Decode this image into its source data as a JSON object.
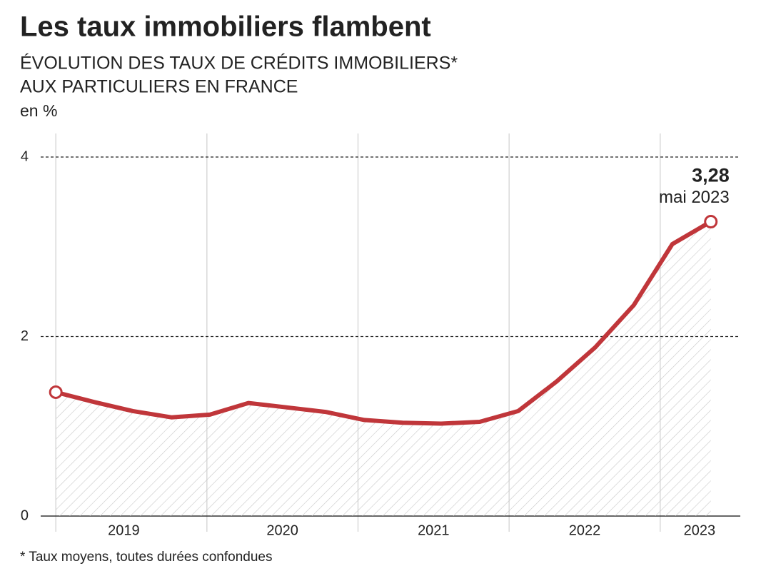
{
  "chart_data": {
    "type": "area-line",
    "title": "Les taux immobiliers flambent",
    "subtitle": [
      "ÉVOLUTION DES TAUX DE CRÉDITS IMMOBILIERS*",
      "AUX PARTICULIERS EN FRANCE"
    ],
    "unit_label": "en %",
    "footnote": "* Taux moyens, toutes durées confondues",
    "x": [
      2019.0,
      2019.255,
      2019.51,
      2019.765,
      2020.02,
      2020.275,
      2020.53,
      2020.785,
      2021.04,
      2021.295,
      2021.55,
      2021.805,
      2022.06,
      2022.315,
      2022.57,
      2022.825,
      2023.08,
      2023.335
    ],
    "series": [
      {
        "name": "Taux",
        "color": "#c0363a",
        "values": [
          1.38,
          1.27,
          1.17,
          1.1,
          1.13,
          1.26,
          1.21,
          1.16,
          1.07,
          1.04,
          1.03,
          1.05,
          1.17,
          1.5,
          1.88,
          2.35,
          3.03,
          3.28
        ]
      }
    ],
    "annotation": {
      "label": "3,28",
      "text": "mai 2023"
    },
    "xlim": [
      2018.9,
      2023.53
    ],
    "xticks": [
      {
        "value": 2019.45,
        "label": "2019"
      },
      {
        "value": 2020.5,
        "label": "2020"
      },
      {
        "value": 2021.5,
        "label": "2021"
      },
      {
        "value": 2022.5,
        "label": "2022"
      },
      {
        "value": 2023.26,
        "label": "2023"
      }
    ],
    "xgrid": [
      2019,
      2020,
      2021,
      2022,
      2023
    ],
    "ylim": [
      0,
      4
    ],
    "yticks": [
      0,
      2,
      4
    ],
    "grid": true
  }
}
